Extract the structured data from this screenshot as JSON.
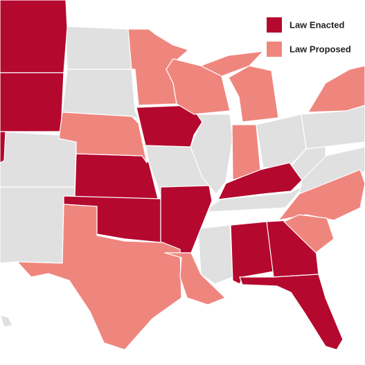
{
  "legend": {
    "items": [
      {
        "label": "Law Enacted",
        "color": "#b5082f"
      },
      {
        "label": "Law Proposed",
        "color": "#ef867e"
      }
    ]
  }
}
